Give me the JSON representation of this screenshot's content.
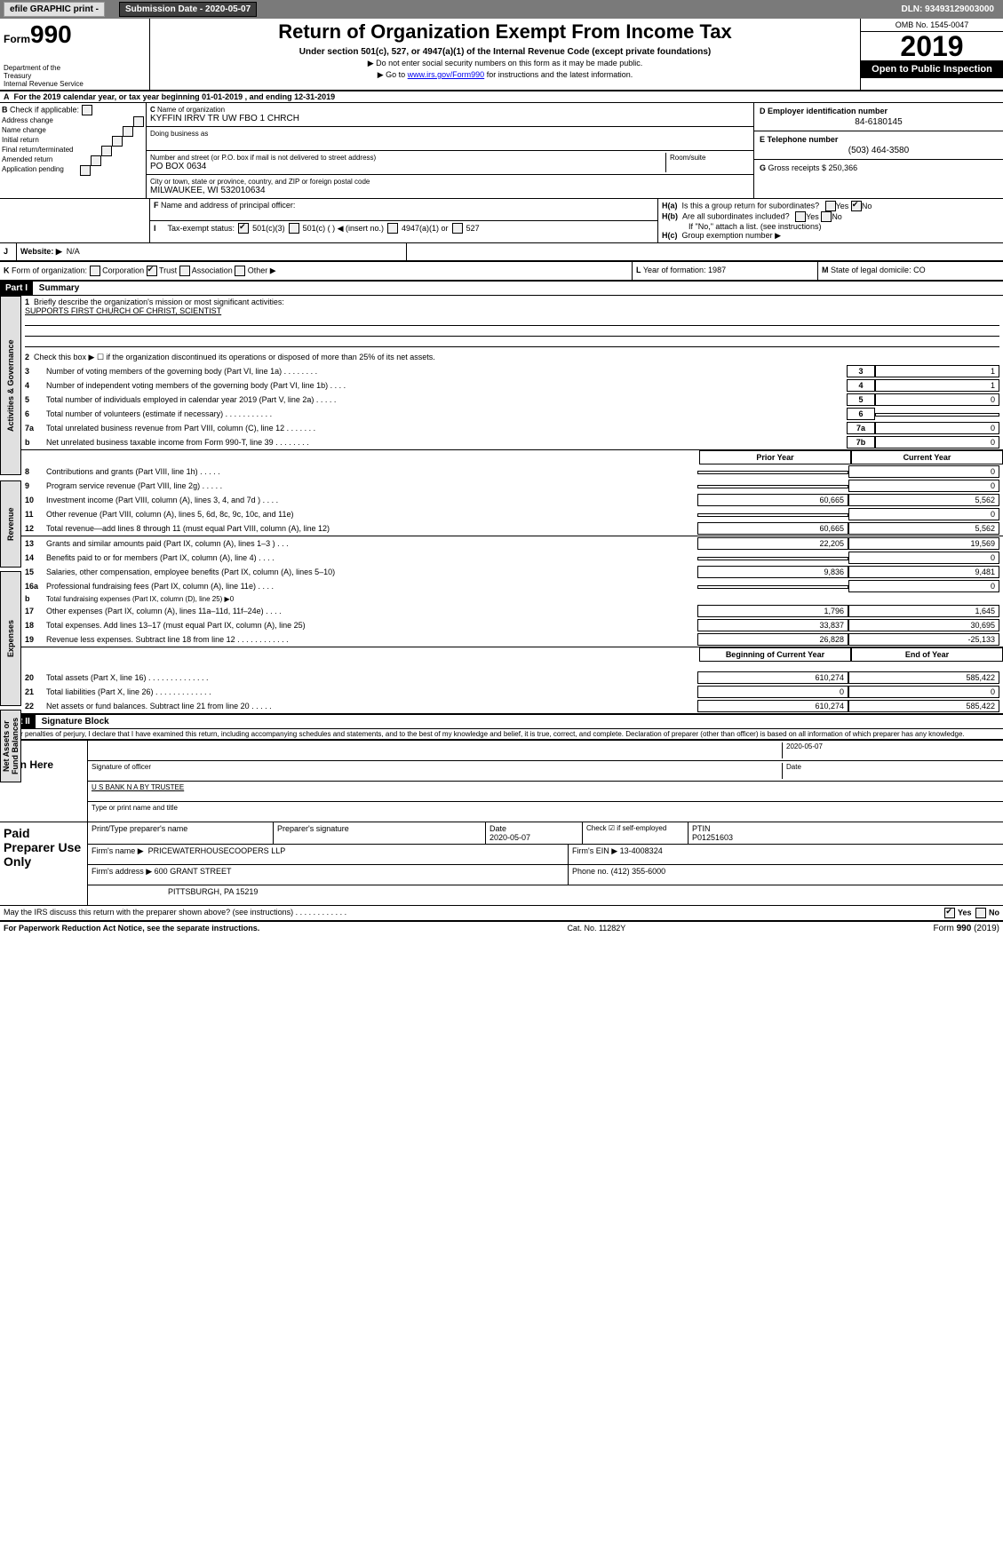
{
  "toolbar": {
    "efile": "efile GRAPHIC print -",
    "submission": "Submission Date - 2020-05-07",
    "dln": "DLN: 93493129003000"
  },
  "header": {
    "form": "990",
    "title": "Return of Organization Exempt From Income Tax",
    "subtitle": "Under section 501(c), 527, or 4947(a)(1) of the Internal Revenue Code (except private foundations)",
    "note1": "▶ Do not enter social security numbers on this form as it may be made public.",
    "note2a": "▶ Go to ",
    "note2link": "www.irs.gov/Form990",
    "note2b": " for instructions and the latest information.",
    "dept": "Department of the Treasury\nInternal Revenue Service",
    "omb": "OMB No. 1545-0047",
    "year": "2019",
    "open": "Open to Public Inspection"
  },
  "rowA": "For the 2019 calendar year, or tax year beginning 01-01-2019      , and ending 12-31-2019",
  "B": {
    "hdr": "Check if applicable:",
    "items": [
      "Address change",
      "Name change",
      "Initial return",
      "Final return/terminated",
      "Amended return",
      "Application pending"
    ]
  },
  "C": {
    "nameLabel": "Name of organization",
    "name": "KYFFIN IRRV TR UW FBO 1 CHRCH",
    "dba": "Doing business as",
    "streetLabel": "Number and street (or P.O. box if mail is not delivered to street address)",
    "roomLabel": "Room/suite",
    "street": "PO BOX 0634",
    "cityLabel": "City or town, state or province, country, and ZIP or foreign postal code",
    "city": "MILWAUKEE, WI  532010634"
  },
  "D": {
    "label": "D Employer identification number",
    "val": "84-6180145"
  },
  "E": {
    "label": "E Telephone number",
    "val": "(503) 464-3580"
  },
  "G": {
    "label": "G",
    "text": "Gross receipts $ 250,366"
  },
  "F": {
    "label": "F",
    "text": "Name and address of principal officer:"
  },
  "H": {
    "a": "Is this a group return for subordinates?",
    "b": "Are all subordinates included?",
    "bNote": "If \"No,\" attach a list. (see instructions)",
    "c": "Group exemption number ▶",
    "yes": "Yes",
    "no": "No"
  },
  "I": {
    "label": "Tax-exempt status:",
    "opts": [
      "501(c)(3)",
      "501(c) (   ) ◀ (insert no.)",
      "4947(a)(1) or",
      "527"
    ]
  },
  "J": {
    "label": "Website: ▶",
    "val": "N/A"
  },
  "K": {
    "label": "Form of organization:",
    "opts": [
      "Corporation",
      "Trust",
      "Association",
      "Other ▶"
    ]
  },
  "L": {
    "label": "L",
    "text": "Year of formation: 1987"
  },
  "M": {
    "label": "M",
    "text": "State of legal domicile: CO"
  },
  "partI": {
    "hdr": "Part I",
    "title": "Summary",
    "line1label": "Briefly describe the organization's mission or most significant activities:",
    "line1": "SUPPORTS FIRST CHURCH OF CHRIST, SCIENTIST",
    "line2": "Check this box ▶ ☐  if the organization discontinued its operations or disposed of more than 25% of its net assets.",
    "lines": [
      {
        "n": "3",
        "t": "Number of voting members of the governing body (Part VI, line 1a)   .    .    .    .    .    .    .    .",
        "box": "3",
        "v": "1"
      },
      {
        "n": "4",
        "t": "Number of independent voting members of the governing body (Part VI, line 1b)   .    .    .    .",
        "box": "4",
        "v": "1"
      },
      {
        "n": "5",
        "t": "Total number of individuals employed in calendar year 2019 (Part V, line 2a)   .    .    .    .    .",
        "box": "5",
        "v": "0"
      },
      {
        "n": "6",
        "t": "Total number of volunteers (estimate if necessary)   .    .    .    .    .    .    .    .    .    .    .",
        "box": "6",
        "v": ""
      },
      {
        "n": "7a",
        "t": "Total unrelated business revenue from Part VIII, column (C), line 12   .    .    .    .    .    .    .",
        "box": "7a",
        "v": "0"
      },
      {
        "n": "b",
        "t": "Net unrelated business taxable income from Form 990-T, line 39   .    .    .    .    .    .    .    .",
        "box": "7b",
        "v": "0"
      }
    ],
    "priorHdr": "Prior Year",
    "currHdr": "Current Year",
    "rev": [
      {
        "n": "8",
        "t": "Contributions and grants (Part VIII, line 1h)   .    .    .    .    .",
        "p": "",
        "c": "0"
      },
      {
        "n": "9",
        "t": "Program service revenue (Part VIII, line 2g)   .    .    .    .    .",
        "p": "",
        "c": "0"
      },
      {
        "n": "10",
        "t": "Investment income (Part VIII, column (A), lines 3, 4, and 7d )   .    .    .    .",
        "p": "60,665",
        "c": "5,562"
      },
      {
        "n": "11",
        "t": "Other revenue (Part VIII, column (A), lines 5, 6d, 8c, 9c, 10c, and 11e)",
        "p": "",
        "c": "0"
      },
      {
        "n": "12",
        "t": "Total revenue—add lines 8 through 11 (must equal Part VIII, column (A), line 12)",
        "p": "60,665",
        "c": "5,562"
      }
    ],
    "exp": [
      {
        "n": "13",
        "t": "Grants and similar amounts paid (Part IX, column (A), lines 1–3 )   .    .    .",
        "p": "22,205",
        "c": "19,569"
      },
      {
        "n": "14",
        "t": "Benefits paid to or for members (Part IX, column (A), line 4)   .    .    .    .",
        "p": "",
        "c": "0"
      },
      {
        "n": "15",
        "t": "Salaries, other compensation, employee benefits (Part IX, column (A), lines 5–10)",
        "p": "9,836",
        "c": "9,481"
      },
      {
        "n": "16a",
        "t": "Professional fundraising fees (Part IX, column (A), line 11e)   .    .    .    .",
        "p": "",
        "c": "0"
      },
      {
        "n": "b",
        "t": "Total fundraising expenses (Part IX, column (D), line 25) ▶0",
        "p": null,
        "c": null
      },
      {
        "n": "17",
        "t": "Other expenses (Part IX, column (A), lines 11a–11d, 11f–24e)   .    .    .    .",
        "p": "1,796",
        "c": "1,645"
      },
      {
        "n": "18",
        "t": "Total expenses. Add lines 13–17 (must equal Part IX, column (A), line 25)",
        "p": "33,837",
        "c": "30,695"
      },
      {
        "n": "19",
        "t": "Revenue less expenses. Subtract line 18 from line 12   .    .    .    .    .    .    .    .    .    .    .    .",
        "p": "26,828",
        "c": "-25,133"
      }
    ],
    "begHdr": "Beginning of Current Year",
    "endHdr": "End of Year",
    "net": [
      {
        "n": "20",
        "t": "Total assets (Part X, line 16)   .    .    .    .    .    .    .    .    .    .    .    .    .    .",
        "p": "610,274",
        "c": "585,422"
      },
      {
        "n": "21",
        "t": "Total liabilities (Part X, line 26)   .    .    .    .    .    .    .    .    .    .    .    .    .",
        "p": "0",
        "c": "0"
      },
      {
        "n": "22",
        "t": "Net assets or fund balances. Subtract line 21 from line 20   .    .    .    .    .",
        "p": "610,274",
        "c": "585,422"
      }
    ]
  },
  "tabs": {
    "gov": "Activities & Governance",
    "rev": "Revenue",
    "exp": "Expenses",
    "net": "Net Assets or Fund Balances"
  },
  "partII": {
    "hdr": "Part II",
    "title": "Signature Block",
    "perjury": "Under penalties of perjury, I declare that I have examined this return, including accompanying schedules and statements, and to the best of my knowledge and belief, it is true, correct, and complete. Declaration of preparer (other than officer) is based on all information of which preparer has any knowledge."
  },
  "sign": {
    "here": "Sign Here",
    "date": "2020-05-07",
    "sigOfficer": "Signature of officer",
    "dateLabel": "Date",
    "trustee": "U S BANK N A BY  TRUSTEE",
    "typeLabel": "Type or print name and title"
  },
  "paid": {
    "hdr": "Paid Preparer Use Only",
    "printLabel": "Print/Type preparer's name",
    "sigLabel": "Preparer's signature",
    "dateLabel": "Date",
    "date": "2020-05-07",
    "checkLabel": "Check ☑ if self-employed",
    "ptinLabel": "PTIN",
    "ptin": "P01251603",
    "firmNameLabel": "Firm's name    ▶",
    "firmName": "PRICEWATERHOUSECOOPERS LLP",
    "einLabel": "Firm's EIN ▶",
    "ein": "13-4008324",
    "firmAddrLabel": "Firm's address ▶",
    "firmAddr1": "600 GRANT STREET",
    "firmAddr2": "PITTSBURGH, PA  15219",
    "phoneLabel": "Phone no.",
    "phone": "(412) 355-6000"
  },
  "mayIRS": "May the IRS discuss this return with the preparer shown above? (see instructions)   .    .    .    .    .    .    .    .    .    .    .    .",
  "footer": {
    "left": "For Paperwork Reduction Act Notice, see the separate instructions.",
    "mid": "Cat. No. 11282Y",
    "right": "Form 990 (2019)"
  }
}
